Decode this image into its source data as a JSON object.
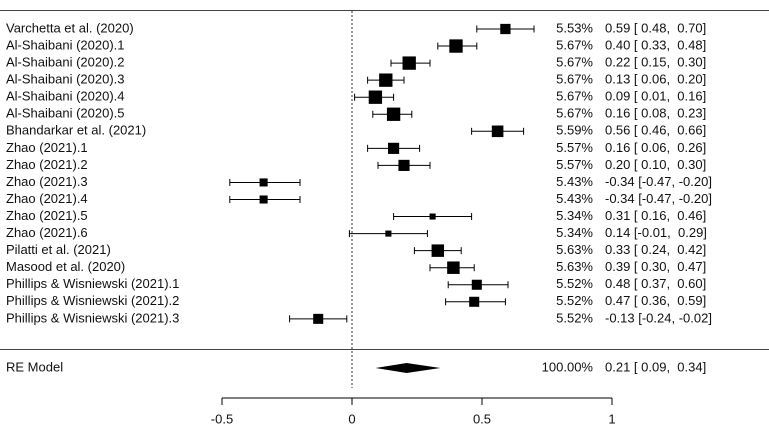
{
  "chart_data": {
    "type": "forest",
    "xlim": [
      -0.5,
      1
    ],
    "xticks": [
      "-0.5",
      "0",
      "0.5",
      "1"
    ],
    "reference_line": 0,
    "studies": [
      {
        "label": "Varchetta  et al. (2020)",
        "weight": "5.53%",
        "ci_text": "0.59 [ 0.48,  0.70]",
        "estimate": 0.59,
        "lower": 0.48,
        "upper": 0.7
      },
      {
        "label": "Al-Shaibani (2020).1",
        "weight": "5.67%",
        "ci_text": "0.40 [ 0.33,  0.48]",
        "estimate": 0.4,
        "lower": 0.33,
        "upper": 0.48
      },
      {
        "label": "Al-Shaibani (2020).2",
        "weight": "5.67%",
        "ci_text": "0.22 [ 0.15,  0.30]",
        "estimate": 0.22,
        "lower": 0.15,
        "upper": 0.3
      },
      {
        "label": "Al-Shaibani (2020).3",
        "weight": "5.67%",
        "ci_text": "0.13 [ 0.06,  0.20]",
        "estimate": 0.13,
        "lower": 0.06,
        "upper": 0.2
      },
      {
        "label": "Al-Shaibani (2020).4",
        "weight": "5.67%",
        "ci_text": "0.09 [ 0.01,  0.16]",
        "estimate": 0.09,
        "lower": 0.01,
        "upper": 0.16
      },
      {
        "label": "Al-Shaibani (2020).5",
        "weight": "5.67%",
        "ci_text": "0.16 [ 0.08,  0.23]",
        "estimate": 0.16,
        "lower": 0.08,
        "upper": 0.23
      },
      {
        "label": "Bhandarkar et  al. (2021)",
        "weight": "5.59%",
        "ci_text": "0.56 [ 0.46,  0.66]",
        "estimate": 0.56,
        "lower": 0.46,
        "upper": 0.66
      },
      {
        "label": "Zhao (2021).1",
        "weight": "5.57%",
        "ci_text": "0.16 [ 0.06,  0.26]",
        "estimate": 0.16,
        "lower": 0.06,
        "upper": 0.26
      },
      {
        "label": "Zhao (2021).2",
        "weight": "5.57%",
        "ci_text": "0.20 [ 0.10,  0.30]",
        "estimate": 0.2,
        "lower": 0.1,
        "upper": 0.3
      },
      {
        "label": "Zhao (2021).3",
        "weight": "5.43%",
        "ci_text": "-0.34 [-0.47, -0.20]",
        "estimate": -0.34,
        "lower": -0.47,
        "upper": -0.2
      },
      {
        "label": "Zhao (2021).4",
        "weight": "5.43%",
        "ci_text": "-0.34 [-0.47, -0.20]",
        "estimate": -0.34,
        "lower": -0.47,
        "upper": -0.2
      },
      {
        "label": "Zhao (2021).5",
        "weight": "5.34%",
        "ci_text": "0.31 [ 0.16,  0.46]",
        "estimate": 0.31,
        "lower": 0.16,
        "upper": 0.46
      },
      {
        "label": "Zhao (2021).6",
        "weight": "5.34%",
        "ci_text": "0.14 [-0.01,  0.29]",
        "estimate": 0.14,
        "lower": -0.01,
        "upper": 0.29
      },
      {
        "label": "Pilatti et al. (2021)",
        "weight": "5.63%",
        "ci_text": "0.33 [ 0.24,  0.42]",
        "estimate": 0.33,
        "lower": 0.24,
        "upper": 0.42
      },
      {
        "label": "Masood et al. (2020)",
        "weight": "5.63%",
        "ci_text": "0.39 [ 0.30,  0.47]",
        "estimate": 0.39,
        "lower": 0.3,
        "upper": 0.47
      },
      {
        "label": "Phillips & Wisniewski (2021).1",
        "weight": "5.52%",
        "ci_text": "0.48 [ 0.37,  0.60]",
        "estimate": 0.48,
        "lower": 0.37,
        "upper": 0.6
      },
      {
        "label": "Phillips & Wisniewski (2021).2",
        "weight": "5.52%",
        "ci_text": "0.47 [ 0.36,  0.59]",
        "estimate": 0.47,
        "lower": 0.36,
        "upper": 0.59
      },
      {
        "label": "Phillips & Wisniewski (2021).3",
        "weight": "5.52%",
        "ci_text": "-0.13 [-0.24, -0.02]",
        "estimate": -0.13,
        "lower": -0.24,
        "upper": -0.02
      }
    ],
    "summary": {
      "label": "RE Model",
      "weight": "100.00%",
      "ci_text": "0.21 [ 0.09,  0.34]",
      "estimate": 0.21,
      "lower": 0.09,
      "upper": 0.34
    }
  }
}
